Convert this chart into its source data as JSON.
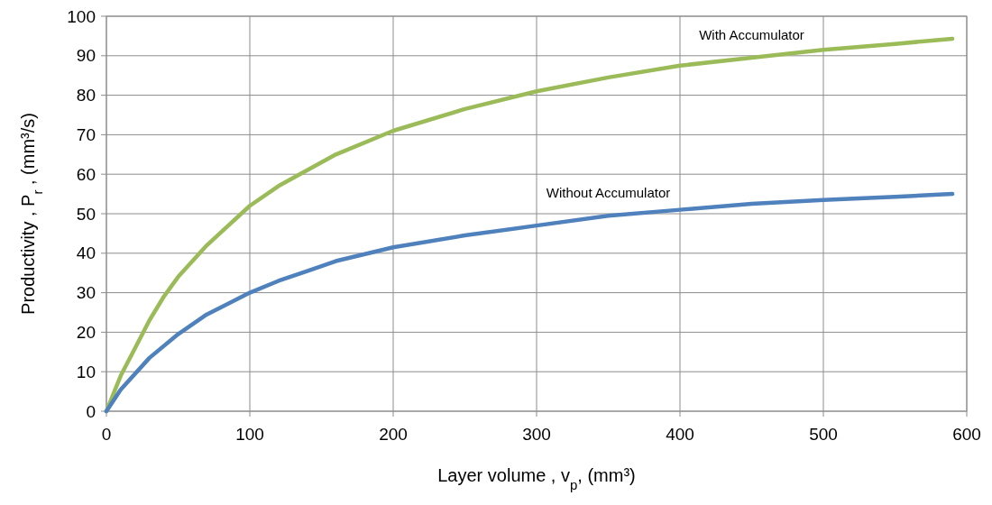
{
  "chart_data": {
    "type": "line",
    "xlabel": "Layer volume , v$_{p}$,  (mm³)",
    "ylabel": "Productivity , P$_{r}$ , (mm³/s)",
    "xlim": [
      0,
      600
    ],
    "xticks": [
      0,
      100,
      200,
      300,
      400,
      500,
      600
    ],
    "ylim": [
      0,
      100
    ],
    "yticks": [
      0,
      10,
      20,
      30,
      40,
      50,
      60,
      70,
      80,
      90,
      100
    ],
    "grid": true,
    "marker": "none",
    "line_style": "solid",
    "series": [
      {
        "name": "With Accumulator",
        "color": "#9bbb59",
        "x": [
          0,
          10,
          20,
          30,
          40,
          50,
          70,
          100,
          120,
          140,
          160,
          200,
          250,
          300,
          350,
          400,
          450,
          500,
          550,
          590
        ],
        "values": [
          0,
          9,
          16,
          23,
          29,
          34,
          42,
          52,
          57,
          61,
          65,
          71,
          76.5,
          81,
          84.5,
          87.5,
          89.5,
          91.5,
          93,
          94.3
        ]
      },
      {
        "name": "Without Accumulator",
        "color": "#4f81bd",
        "x": [
          0,
          10,
          30,
          50,
          70,
          100,
          120,
          140,
          160,
          200,
          250,
          300,
          350,
          400,
          450,
          500,
          550,
          590
        ],
        "values": [
          0,
          5.5,
          13.5,
          19.5,
          24.5,
          30,
          33,
          35.5,
          38,
          41.5,
          44.5,
          47,
          49.5,
          51,
          52.5,
          53.5,
          54.3,
          55
        ]
      }
    ]
  }
}
